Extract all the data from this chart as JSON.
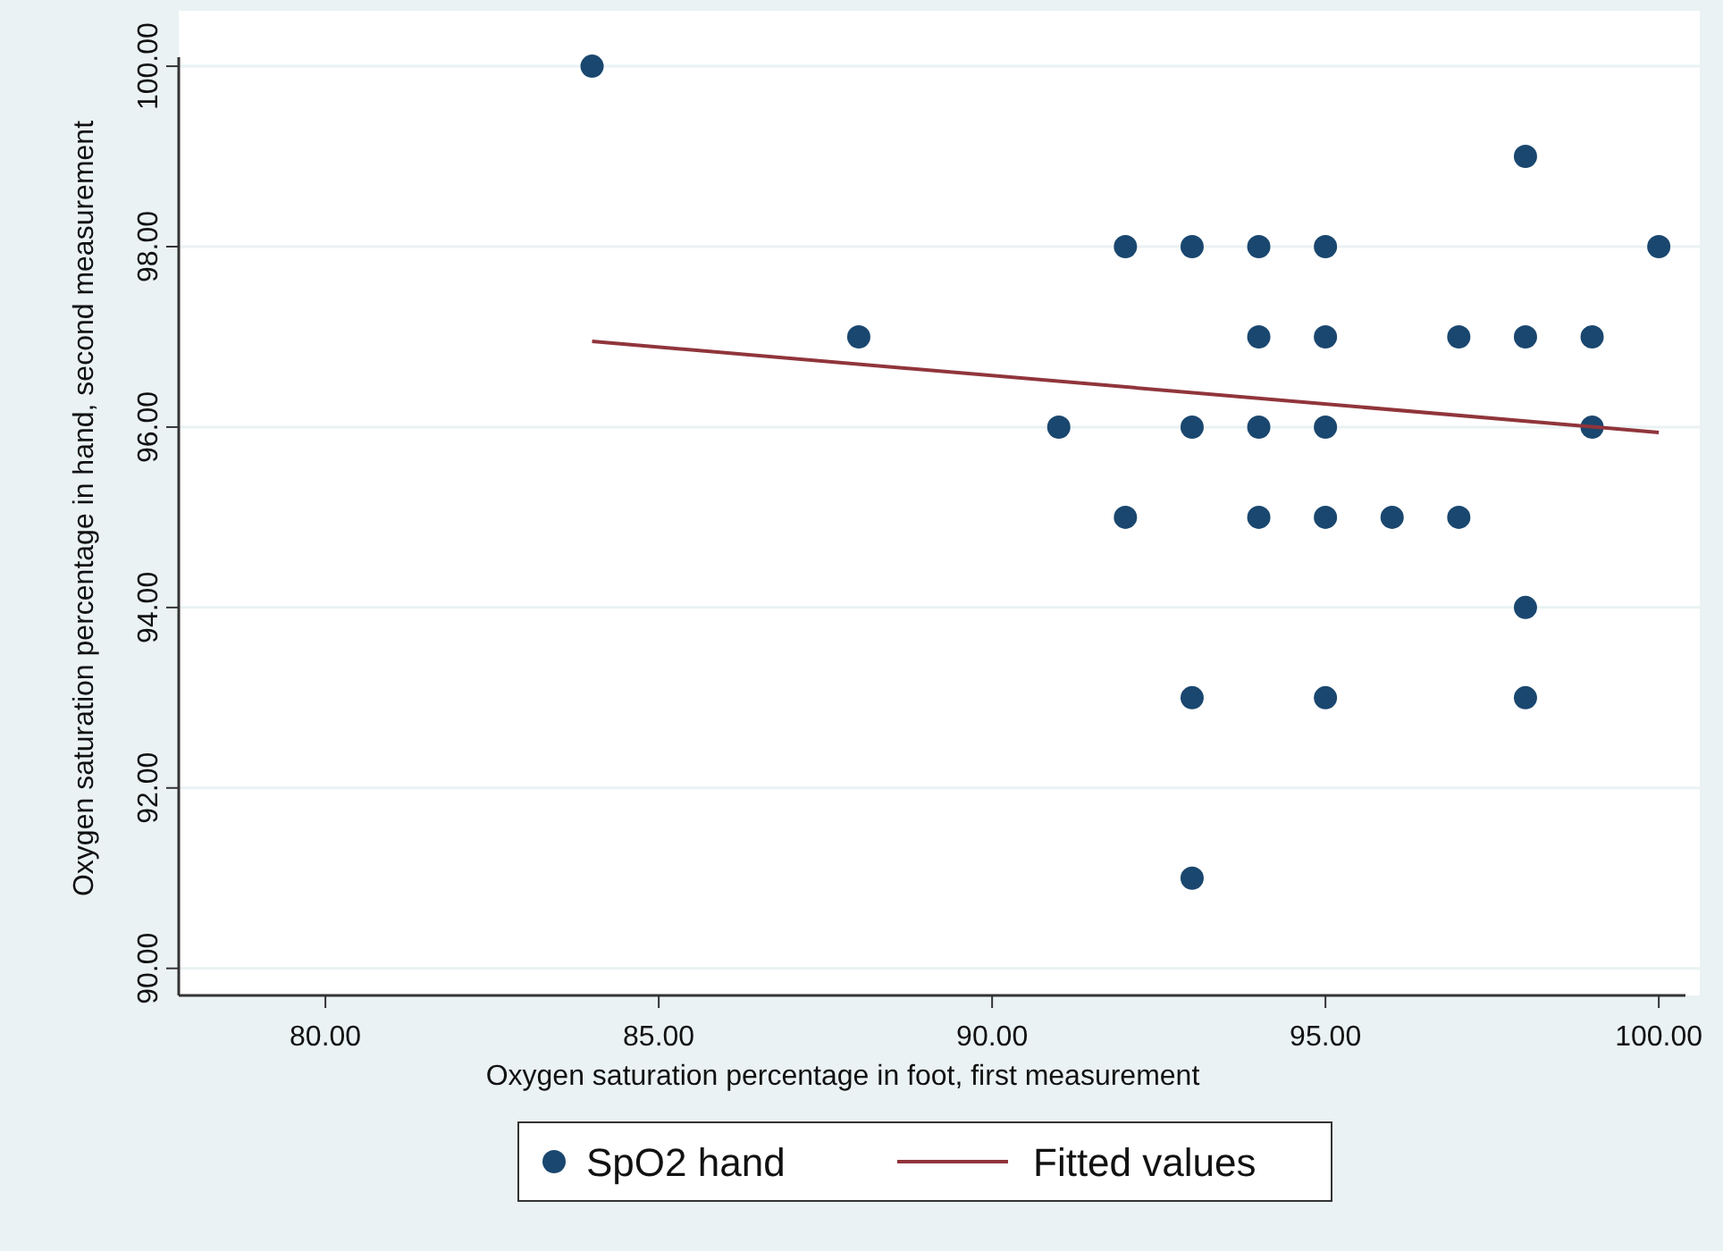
{
  "chart_data": {
    "type": "scatter",
    "xlabel": "Oxygen saturation percentage in foot, first measurement",
    "ylabel": "Oxygen saturation percentage in hand, second measurement",
    "xlim": [
      77.8,
      100.4
    ],
    "ylim": [
      89.7,
      100.1
    ],
    "xticks": [
      {
        "value": 80,
        "label": "80.00"
      },
      {
        "value": 85,
        "label": "85.00"
      },
      {
        "value": 90,
        "label": "90.00"
      },
      {
        "value": 95,
        "label": "95.00"
      },
      {
        "value": 100,
        "label": "100.00"
      }
    ],
    "yticks": [
      {
        "value": 90,
        "label": "90.00"
      },
      {
        "value": 92,
        "label": "92.00"
      },
      {
        "value": 94,
        "label": "94.00"
      },
      {
        "value": 96,
        "label": "96.00"
      },
      {
        "value": 98,
        "label": "98.00"
      },
      {
        "value": 100,
        "label": "100.00"
      }
    ],
    "grid": "y",
    "legend": "bottom",
    "series": [
      {
        "name": "SpO2 hand",
        "marker": "circle",
        "color": "#1a476f",
        "x": [
          84,
          98,
          92,
          93,
          94,
          95,
          100,
          88,
          94,
          95,
          97,
          98,
          99,
          91,
          93,
          94,
          95,
          99,
          92,
          94,
          95,
          96,
          97,
          98,
          93,
          95,
          98,
          93
        ],
        "values": [
          100,
          99,
          98,
          98,
          98,
          98,
          98,
          97,
          97,
          97,
          97,
          97,
          97,
          96,
          96,
          96,
          96,
          96,
          95,
          95,
          95,
          95,
          95,
          94,
          93,
          93,
          93,
          91
        ]
      },
      {
        "name": "Fitted values",
        "type": "line",
        "color": "#90353b",
        "line_style": "solid",
        "x": [
          84,
          100
        ],
        "values": [
          96.95,
          95.94
        ]
      }
    ]
  }
}
